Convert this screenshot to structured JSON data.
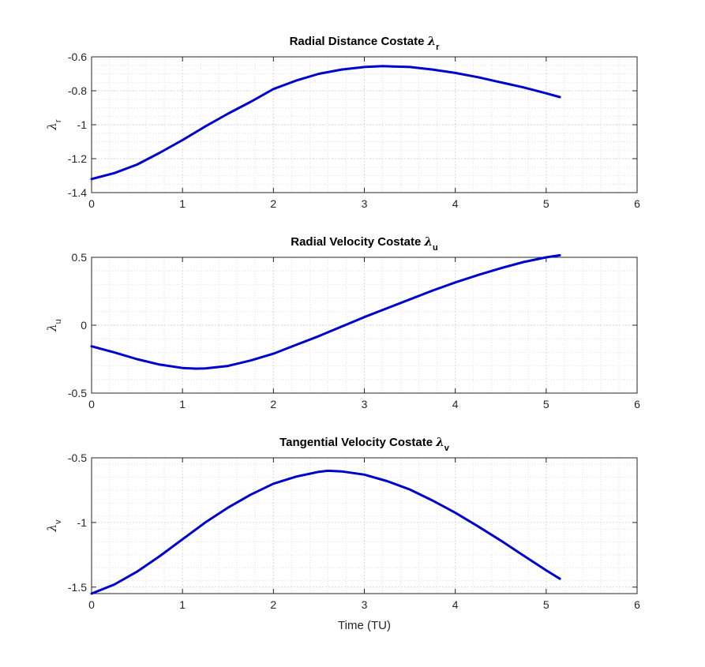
{
  "figure": {
    "background": "#ffffff"
  },
  "chart_data": [
    {
      "type": "line",
      "title": "Radial Distance Costate",
      "title_symbol": "λ",
      "title_subscript": "r",
      "ylabel_symbol": "λ",
      "ylabel_subscript": "r",
      "xlabel": "",
      "xlim": [
        0,
        6
      ],
      "ylim": [
        -1.4,
        -0.6
      ],
      "xticks": [
        0,
        1,
        2,
        3,
        4,
        5,
        6
      ],
      "xtick_labels": [
        "0",
        "1",
        "2",
        "3",
        "4",
        "5",
        "6"
      ],
      "yticks": [
        -1.4,
        -1.2,
        -1,
        -0.8,
        -0.6
      ],
      "ytick_labels": [
        "-1.4",
        "-1.2",
        "-1",
        "-0.8",
        "-0.6"
      ],
      "yminor_step": 0.05,
      "grid": true,
      "minor_grid": true,
      "color": "#0000cc",
      "series": [
        {
          "x": [
            0,
            0.25,
            0.5,
            0.75,
            1.0,
            1.25,
            1.5,
            1.75,
            2.0,
            2.25,
            2.5,
            2.75,
            3.0,
            3.2,
            3.5,
            3.75,
            4.0,
            4.25,
            4.5,
            4.75,
            5.0,
            5.15
          ],
          "values": [
            -1.32,
            -1.285,
            -1.235,
            -1.165,
            -1.09,
            -1.01,
            -0.935,
            -0.865,
            -0.79,
            -0.74,
            -0.7,
            -0.675,
            -0.66,
            -0.655,
            -0.66,
            -0.675,
            -0.695,
            -0.72,
            -0.75,
            -0.78,
            -0.815,
            -0.837
          ]
        }
      ]
    },
    {
      "type": "line",
      "title": "Radial Velocity Costate",
      "title_symbol": "λ",
      "title_subscript": "u",
      "ylabel_symbol": "λ",
      "ylabel_subscript": "u",
      "xlabel": "",
      "xlim": [
        0,
        6
      ],
      "ylim": [
        -0.5,
        0.5
      ],
      "xticks": [
        0,
        1,
        2,
        3,
        4,
        5,
        6
      ],
      "xtick_labels": [
        "0",
        "1",
        "2",
        "3",
        "4",
        "5",
        "6"
      ],
      "yticks": [
        -0.5,
        0,
        0.5
      ],
      "ytick_labels": [
        "-0.5",
        "0",
        "0.5"
      ],
      "yminor_step": 0.1,
      "grid": true,
      "minor_grid": true,
      "color": "#0000cc",
      "series": [
        {
          "x": [
            0,
            0.25,
            0.5,
            0.75,
            1.0,
            1.15,
            1.25,
            1.5,
            1.75,
            2.0,
            2.25,
            2.5,
            2.75,
            3.0,
            3.25,
            3.5,
            3.75,
            4.0,
            4.25,
            4.5,
            4.75,
            5.0,
            5.15
          ],
          "values": [
            -0.155,
            -0.2,
            -0.25,
            -0.29,
            -0.315,
            -0.32,
            -0.318,
            -0.3,
            -0.26,
            -0.21,
            -0.145,
            -0.08,
            -0.01,
            0.06,
            0.125,
            0.19,
            0.255,
            0.315,
            0.37,
            0.42,
            0.465,
            0.5,
            0.515
          ]
        }
      ]
    },
    {
      "type": "line",
      "title": "Tangential Velocity Costate",
      "title_symbol": "λ",
      "title_subscript": "v",
      "ylabel_symbol": "λ",
      "ylabel_subscript": "v",
      "xlabel": "Time (TU)",
      "xlim": [
        0,
        6
      ],
      "ylim": [
        -1.55,
        -0.5
      ],
      "xticks": [
        0,
        1,
        2,
        3,
        4,
        5,
        6
      ],
      "xtick_labels": [
        "0",
        "1",
        "2",
        "3",
        "4",
        "5",
        "6"
      ],
      "yticks": [
        -1.5,
        -1,
        -0.5
      ],
      "ytick_labels": [
        "-1.5",
        "-1",
        "-0.5"
      ],
      "yminor_step": 0.1,
      "grid": true,
      "minor_grid": true,
      "color": "#0000cc",
      "series": [
        {
          "x": [
            0,
            0.25,
            0.5,
            0.75,
            1.0,
            1.25,
            1.5,
            1.75,
            2.0,
            2.25,
            2.5,
            2.6,
            2.75,
            3.0,
            3.25,
            3.5,
            3.75,
            4.0,
            4.25,
            4.5,
            4.75,
            5.0,
            5.15
          ],
          "values": [
            -1.55,
            -1.48,
            -1.38,
            -1.26,
            -1.13,
            -1.0,
            -0.885,
            -0.785,
            -0.7,
            -0.645,
            -0.608,
            -0.6,
            -0.605,
            -0.63,
            -0.68,
            -0.745,
            -0.83,
            -0.925,
            -1.03,
            -1.14,
            -1.255,
            -1.37,
            -1.435
          ]
        }
      ]
    }
  ]
}
